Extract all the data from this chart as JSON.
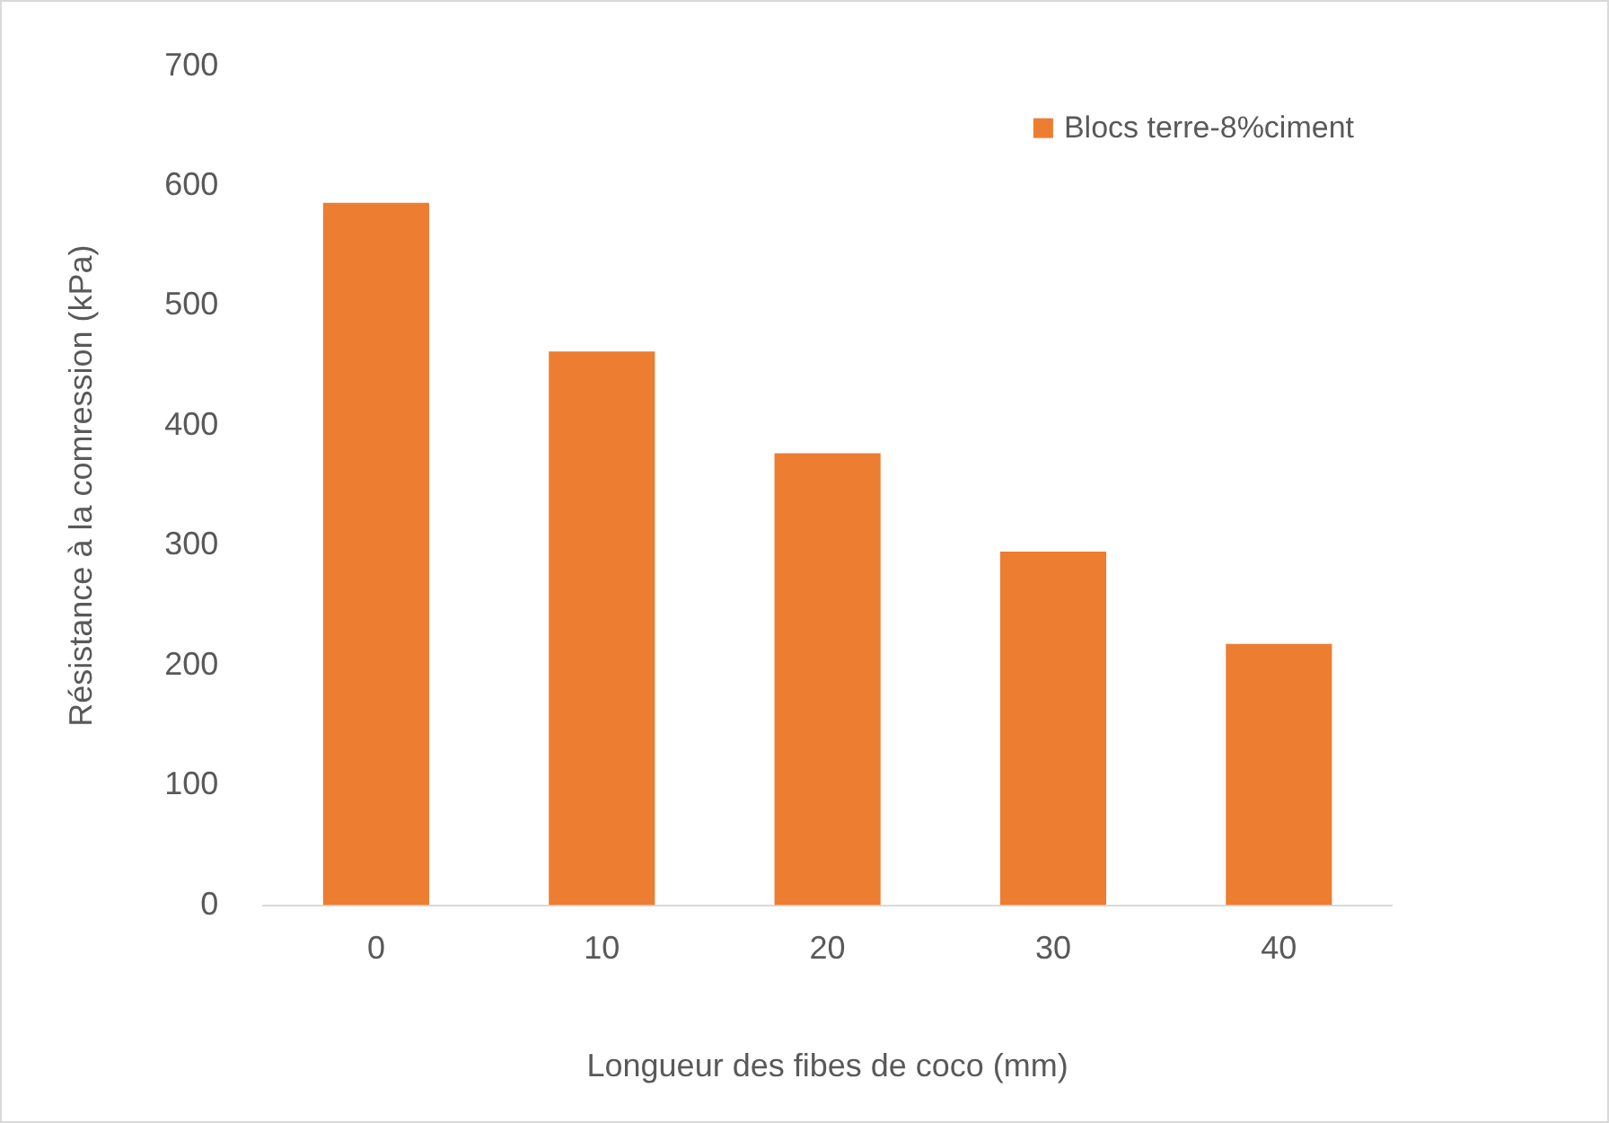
{
  "chart_data": {
    "type": "bar",
    "xlabel": "Longueur des fibes de coco (mm)",
    "ylabel": "Résistance à la comression (kPa)",
    "categories": [
      "0",
      "10",
      "20",
      "30",
      "40"
    ],
    "series": [
      {
        "name": "Blocs terre-8%ciment",
        "color": "#ed7d31",
        "values": [
          586,
          462,
          377,
          295,
          218
        ]
      }
    ],
    "ylim": [
      0,
      700
    ],
    "yticks": [
      0,
      100,
      200,
      300,
      400,
      500,
      600,
      700
    ],
    "grid": false,
    "legend": "top right"
  }
}
